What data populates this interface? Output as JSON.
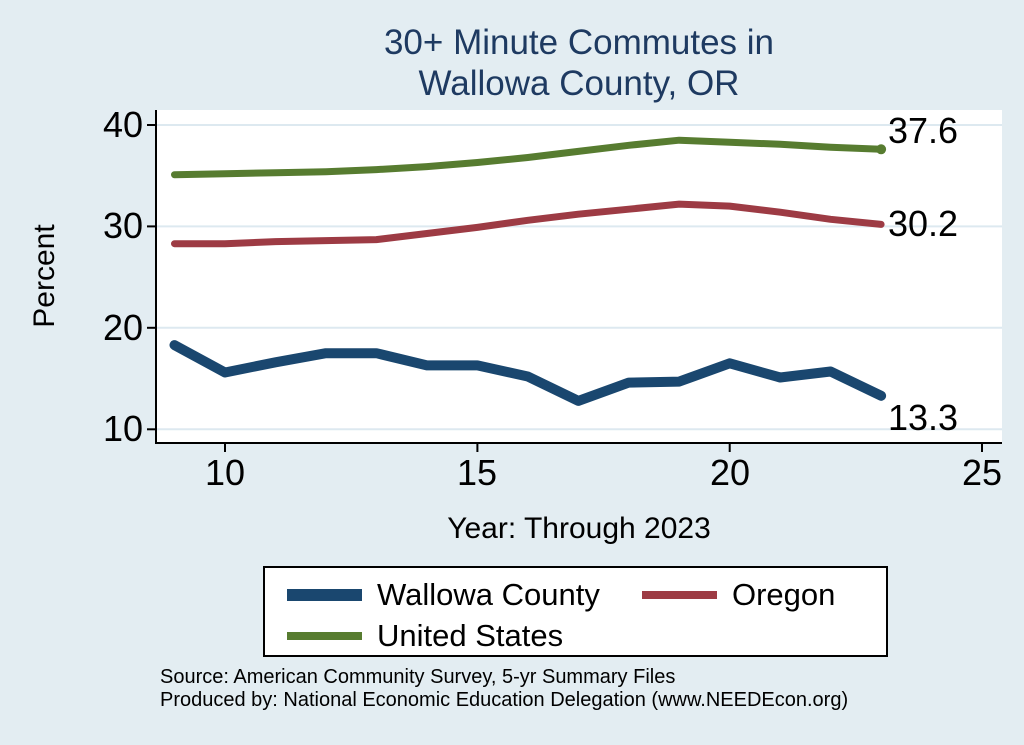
{
  "title": {
    "line1": "30+ Minute Commutes in",
    "line2": "Wallowa County, OR"
  },
  "chart_data": {
    "type": "line",
    "title": "30+ Minute Commutes in Wallowa County, OR",
    "xlabel": "Year: Through 2023",
    "ylabel": "Percent",
    "x": [
      9,
      10,
      11,
      12,
      13,
      14,
      15,
      16,
      17,
      18,
      19,
      20,
      21,
      22,
      23
    ],
    "xticks": [
      10,
      15,
      20,
      25
    ],
    "yticks": [
      10,
      20,
      30,
      40
    ],
    "xlim": [
      8.6,
      25.4
    ],
    "ylim": [
      8.6,
      41.5
    ],
    "grid": "horizontal-only",
    "legend_position": "bottom",
    "series": [
      {
        "name": "Wallowa County",
        "color": "#1a476f",
        "thickness": 10,
        "values": [
          18.3,
          15.6,
          16.6,
          17.5,
          17.5,
          16.3,
          16.3,
          15.2,
          12.8,
          14.6,
          14.7,
          16.5,
          15.1,
          15.7,
          13.3
        ],
        "end_label": "13.3",
        "end_marker": false
      },
      {
        "name": "Oregon",
        "color": "#9d3b44",
        "thickness": 7,
        "values": [
          28.3,
          28.3,
          28.5,
          28.6,
          28.7,
          29.3,
          29.9,
          30.6,
          31.2,
          31.7,
          32.2,
          32.0,
          31.4,
          30.7,
          30.2
        ],
        "end_label": "30.2",
        "end_marker": false
      },
      {
        "name": "United States",
        "color": "#577c30",
        "thickness": 7,
        "values": [
          35.1,
          35.2,
          35.3,
          35.4,
          35.6,
          35.9,
          36.3,
          36.8,
          37.4,
          38.0,
          38.5,
          38.3,
          38.1,
          37.8,
          37.6
        ],
        "end_label": "37.6",
        "end_marker": true
      }
    ]
  },
  "footer": {
    "source_line": "Source: American Community Survey, 5-yr Summary Files",
    "produced_line": "Produced by: National Economic Education Delegation (www.NEEDEcon.org)"
  },
  "colors": {
    "background": "#e3edf2",
    "plot_background": "#ffffff",
    "gridline": "#dde9f0",
    "axis": "#000000",
    "title_text": "#1e3a61"
  }
}
